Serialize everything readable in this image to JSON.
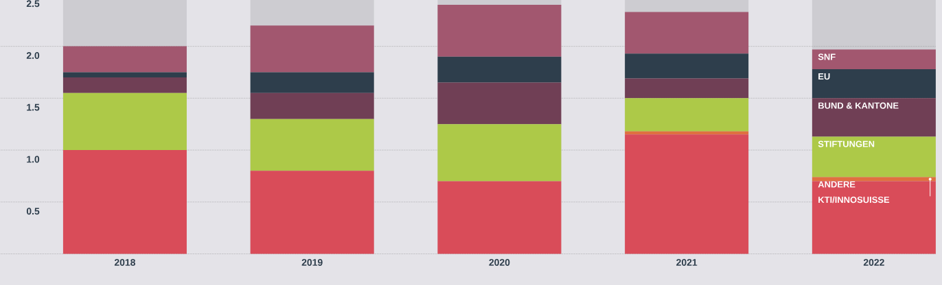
{
  "chart_data": {
    "type": "bar",
    "stacked": true,
    "categories": [
      "2018",
      "2019",
      "2020",
      "2021",
      "2022"
    ],
    "series": [
      {
        "name": "KTI/INNOSUISSE",
        "color": "#d94c59",
        "values": [
          1.0,
          0.8,
          0.7,
          1.15,
          0.7
        ]
      },
      {
        "name": "ANDERE",
        "color": "#e07040",
        "values": [
          0,
          0,
          0,
          0.03,
          0.04
        ]
      },
      {
        "name": "STIFTUNGEN",
        "color": "#adc948",
        "values": [
          0.55,
          0.5,
          0.55,
          0.32,
          0.39
        ]
      },
      {
        "name": "BUND & KANTONE",
        "color": "#703f55",
        "values": [
          0.15,
          0.25,
          0.4,
          0.19,
          0.37
        ]
      },
      {
        "name": "EU",
        "color": "#2e3e4c",
        "values": [
          0.05,
          0.2,
          0.25,
          0.24,
          0.28
        ]
      },
      {
        "name": "SNF",
        "color": "#a2576f",
        "values": [
          0.25,
          0.45,
          0.5,
          0.4,
          0.19
        ]
      }
    ],
    "ylim": [
      0,
      2.5
    ],
    "yticks": [
      {
        "value": 0,
        "label": null
      },
      0.5,
      {
        "value": 1,
        "label": "1.0"
      },
      1.5,
      {
        "value": 2,
        "label": "2.0"
      },
      2.5
    ],
    "grid": "y",
    "bands": [
      {
        "axis": "x",
        "from": "2018",
        "to": "2018",
        "color": "#cdccd1"
      },
      {
        "axis": "x",
        "from": "2019",
        "to": "2019",
        "color": "#cdccd1"
      },
      {
        "axis": "x",
        "from": "2020",
        "to": "2020",
        "color": "#cdccd1"
      },
      {
        "axis": "x",
        "from": "2021",
        "to": "2021",
        "color": "#cdccd1"
      },
      {
        "axis": "x",
        "from": "2022",
        "to": "2022",
        "color": "#cdccd1"
      }
    ]
  }
}
